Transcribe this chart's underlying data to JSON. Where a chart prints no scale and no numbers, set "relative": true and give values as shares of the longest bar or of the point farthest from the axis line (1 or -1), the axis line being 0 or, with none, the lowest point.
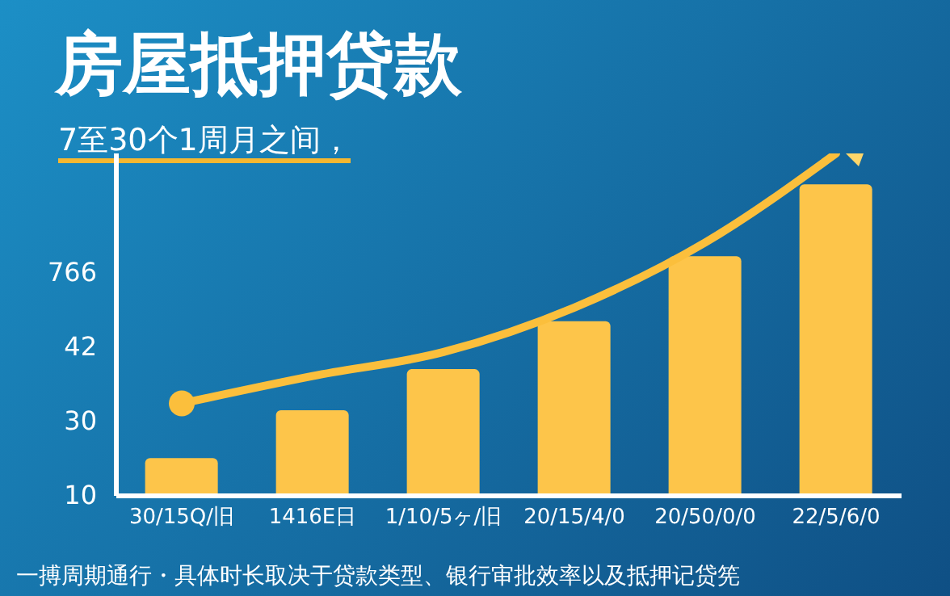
{
  "chart_data": {
    "type": "bar",
    "title": "房屋抵押贷款",
    "subtitle": "7至30个1周月之间，",
    "relative": true,
    "categories": [
      "30/15Q/旧",
      "1416E日",
      "1/10/5ヶ/旧",
      "20/15/4/0",
      "20/50/0/0",
      "22/5/6/0"
    ],
    "series": [
      {
        "color": "#fdc54a",
        "values": [
          0.11,
          0.25,
          0.37,
          0.51,
          0.7,
          0.91
        ]
      },
      {
        "type": "line",
        "color": "#fbbf3c",
        "values": [
          0.27,
          0.35,
          0.42,
          0.55,
          0.74,
          1
        ]
      }
    ],
    "annotations": [
      "10",
      "30",
      "42",
      "766",
      "一搏周期通行・具体时长取决于贷款类型、银行审批效率以及抵押记贷筅"
    ]
  }
}
